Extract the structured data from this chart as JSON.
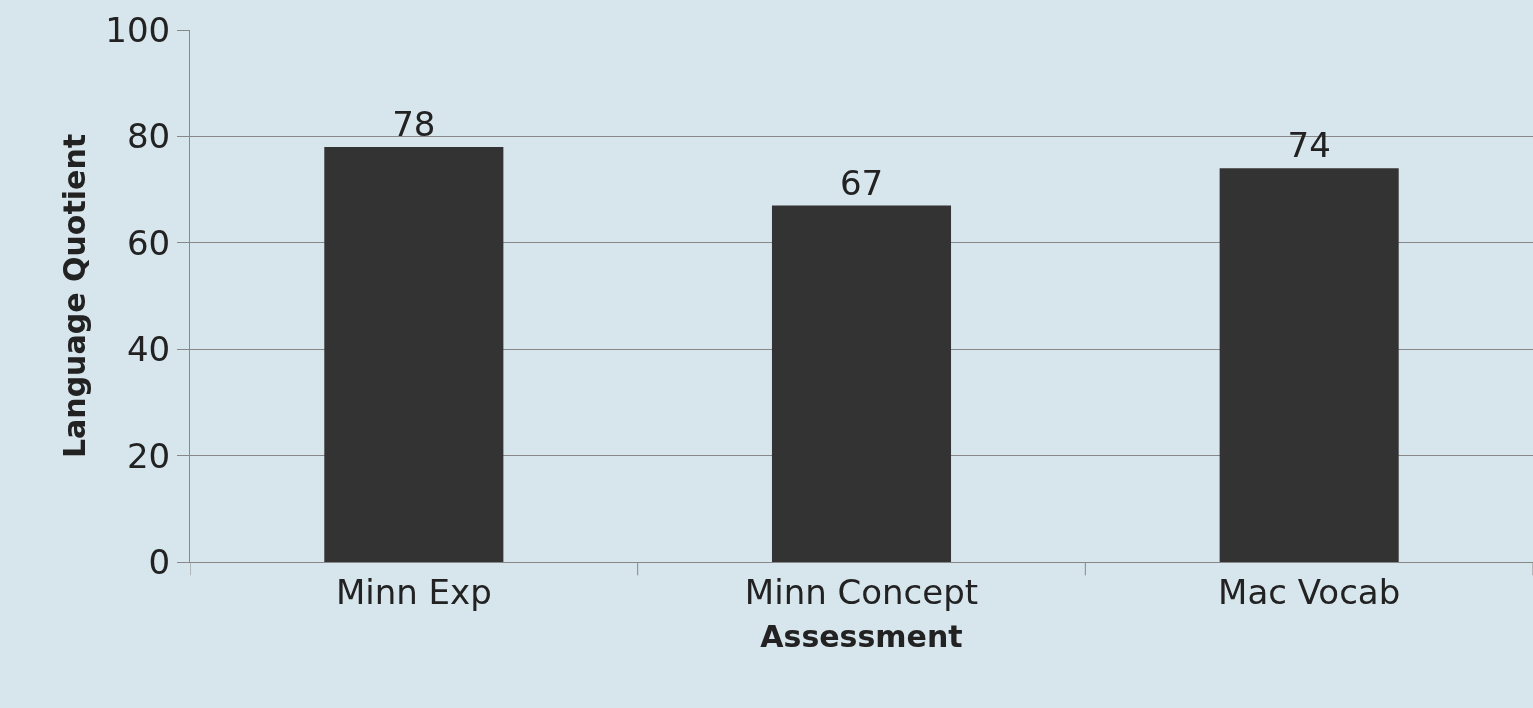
{
  "chart_data": {
    "type": "bar",
    "xlabel": "Assessment",
    "ylabel": "Language Quotient",
    "categories": [
      "Minn Exp",
      "Minn Concept",
      "Mac Vocab"
    ],
    "values": [
      78,
      67,
      74
    ],
    "color": "#333333",
    "data_labels": true,
    "ylim": [
      0,
      100
    ],
    "yticks": [
      0,
      20,
      40,
      60,
      80,
      100
    ],
    "grid": "y"
  }
}
